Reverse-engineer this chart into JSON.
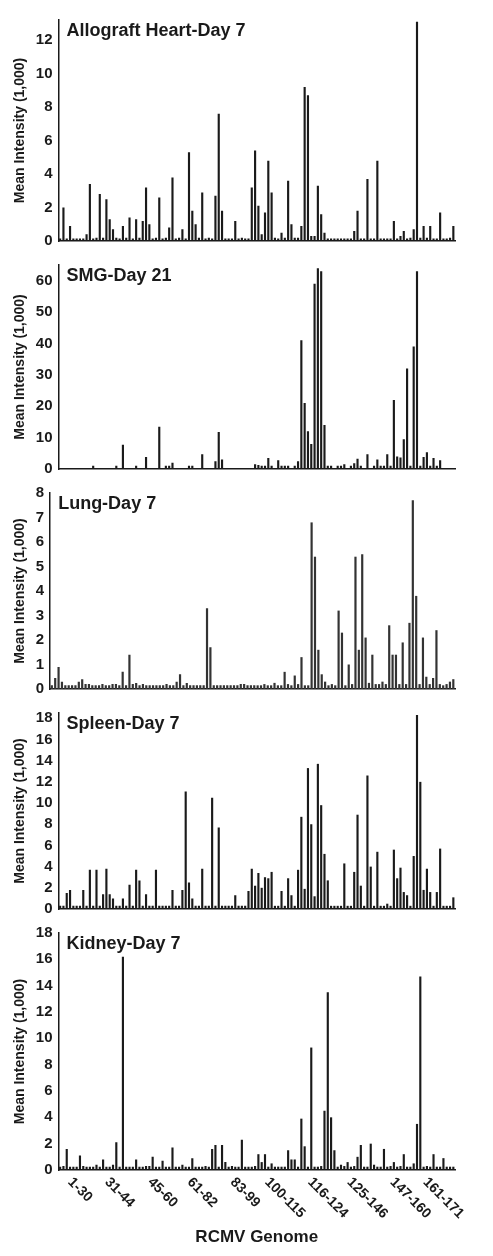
{
  "chart_data": [
    {
      "type": "bar",
      "title": "Allograft Heart-Day 7",
      "ylabel": "Mean Intensity (1,000)",
      "tick_labels": "y",
      "categories": [
        null,
        null,
        null,
        null,
        null,
        null,
        null,
        null,
        null,
        null,
        null,
        null,
        null,
        null,
        null,
        null,
        null,
        null,
        null,
        null,
        null,
        null,
        null,
        null,
        null,
        null,
        null,
        null,
        null,
        null,
        null,
        null,
        null,
        null,
        null,
        null,
        null,
        null,
        null,
        null,
        null,
        null,
        null,
        null,
        null,
        null,
        null,
        null,
        null,
        null,
        null,
        null,
        null,
        null,
        null,
        null,
        null,
        null,
        null,
        null,
        null,
        null,
        null,
        null,
        null,
        null,
        null,
        null,
        null,
        null,
        null,
        null,
        null,
        null,
        null,
        null,
        null,
        null,
        null,
        null,
        null,
        null,
        null,
        null,
        null,
        null,
        null,
        null,
        null,
        null,
        null,
        null,
        null,
        null,
        null,
        null,
        null,
        null,
        null,
        null,
        null,
        null,
        null,
        null,
        null,
        null,
        null,
        null,
        null,
        null,
        null,
        null,
        null,
        null,
        null,
        null,
        null,
        null,
        null,
        null
      ],
      "color": "#1a1a1a",
      "values": [
        0.15,
        2.0,
        0.15,
        0.9,
        0.15,
        0.15,
        0.15,
        0.15,
        0.4,
        3.4,
        0.15,
        0.2,
        2.8,
        0.2,
        2.5,
        1.3,
        0.7,
        0.2,
        0.15,
        0.9,
        0.2,
        1.4,
        0.15,
        1.3,
        0.2,
        1.2,
        3.2,
        1.0,
        0.15,
        0.2,
        2.6,
        0.15,
        0.2,
        0.8,
        3.8,
        0.15,
        0.2,
        0.7,
        0.15,
        5.3,
        1.8,
        1.0,
        0.2,
        2.9,
        0.15,
        0.2,
        0.15,
        2.7,
        7.6,
        1.8,
        0.15,
        0.15,
        0.15,
        1.2,
        0.15,
        0.2,
        0.15,
        0.15,
        3.2,
        5.4,
        2.1,
        0.4,
        1.7,
        4.8,
        2.9,
        0.2,
        0.15,
        0.5,
        0.2,
        3.6,
        1.0,
        0.2,
        0.2,
        0.9,
        9.2,
        8.7,
        0.3,
        0.3,
        3.3,
        1.6,
        0.5,
        0.15,
        0.15,
        0.15,
        0.15,
        0.15,
        0.15,
        0.15,
        0.15,
        0.6,
        1.8,
        0.15,
        0.15,
        3.7,
        0.15,
        0.15,
        4.8,
        0.15,
        0.15,
        0.15,
        0.15,
        1.2,
        0.15,
        0.3,
        0.6,
        0.15,
        0.2,
        0.7,
        13.1,
        0.2,
        0.9,
        0.2,
        0.9,
        0.15,
        0.15,
        1.7,
        0.15,
        0.15,
        0.2,
        0.9
      ],
      "ylim": [
        0,
        13.2
      ],
      "yticks": [
        0,
        2,
        4,
        6,
        8,
        10,
        12
      ]
    },
    {
      "type": "bar",
      "title": "SMG-Day 21",
      "ylabel": "Mean Intensity (1,000)",
      "tick_labels": "y",
      "categories": [
        null,
        null,
        null,
        null,
        null,
        null,
        null,
        null,
        null,
        null,
        null,
        null,
        null,
        null,
        null,
        null,
        null,
        null,
        null,
        null,
        null,
        null,
        null,
        null,
        null,
        null,
        null,
        null,
        null,
        null,
        null,
        null,
        null,
        null,
        null,
        null,
        null,
        null,
        null,
        null,
        null,
        null,
        null,
        null,
        null,
        null,
        null,
        null,
        null,
        null,
        null,
        null,
        null,
        null,
        null,
        null,
        null,
        null,
        null,
        null,
        null,
        null,
        null,
        null,
        null,
        null,
        null,
        null,
        null,
        null,
        null,
        null,
        null,
        null,
        null,
        null,
        null,
        null,
        null,
        null,
        null,
        null,
        null,
        null,
        null,
        null,
        null,
        null,
        null,
        null,
        null,
        null,
        null,
        null,
        null,
        null,
        null,
        null,
        null,
        null,
        null,
        null,
        null,
        null,
        null,
        null,
        null,
        null,
        null,
        null,
        null,
        null,
        null,
        null,
        null,
        null,
        null,
        null,
        null,
        null
      ],
      "color": "#1a1a1a",
      "values": [
        null,
        null,
        null,
        null,
        null,
        null,
        null,
        null,
        null,
        null,
        1.0,
        null,
        null,
        null,
        null,
        null,
        null,
        1.0,
        null,
        7.7,
        null,
        null,
        null,
        1.0,
        null,
        null,
        3.8,
        null,
        null,
        null,
        13.5,
        null,
        1.0,
        1.0,
        2.0,
        null,
        null,
        null,
        null,
        1.0,
        1.0,
        null,
        null,
        4.7,
        null,
        null,
        null,
        2.5,
        11.8,
        3.0,
        null,
        null,
        null,
        null,
        null,
        null,
        null,
        null,
        null,
        1.5,
        1.3,
        1.0,
        1.0,
        3.5,
        1.0,
        null,
        2.8,
        1.0,
        1.0,
        1.0,
        null,
        1.0,
        2.5,
        41,
        21,
        12,
        8,
        59,
        64,
        63,
        14,
        1.0,
        1.0,
        null,
        1.0,
        1.0,
        1.5,
        null,
        1.0,
        1.8,
        3.3,
        1.0,
        null,
        4.7,
        null,
        1.0,
        3.0,
        1.0,
        1.0,
        4.7,
        1.0,
        22,
        4.0,
        3.7,
        9.5,
        32,
        1.0,
        39,
        63,
        1.0,
        3.8,
        5.3,
        1.0,
        3.5,
        1.0,
        2.8,
        null,
        null,
        null,
        null
      ],
      "ylim": [
        0,
        65
      ],
      "yticks": [
        0,
        10,
        20,
        30,
        40,
        50,
        60
      ]
    },
    {
      "type": "bar",
      "title": "Lung-Day 7",
      "ylabel": "Mean Intensity (1,000)",
      "tick_labels": "y",
      "categories": [
        null,
        null,
        null,
        null,
        null,
        null,
        null,
        null,
        null,
        null,
        null,
        null,
        null,
        null,
        null,
        null,
        null,
        null,
        null,
        null,
        null,
        null,
        null,
        null,
        null,
        null,
        null,
        null,
        null,
        null,
        null,
        null,
        null,
        null,
        null,
        null,
        null,
        null,
        null,
        null,
        null,
        null,
        null,
        null,
        null,
        null,
        null,
        null,
        null,
        null,
        null,
        null,
        null,
        null,
        null,
        null,
        null,
        null,
        null,
        null,
        null,
        null,
        null,
        null,
        null,
        null,
        null,
        null,
        null,
        null,
        null,
        null,
        null,
        null,
        null,
        null,
        null,
        null,
        null,
        null,
        null,
        null,
        null,
        null,
        null,
        null,
        null,
        null,
        null,
        null,
        null,
        null,
        null,
        null,
        null,
        null,
        null,
        null,
        null,
        null,
        null,
        null,
        null,
        null,
        null,
        null,
        null,
        null,
        null,
        null,
        null,
        null,
        null,
        null,
        null,
        null,
        null,
        null,
        null,
        null
      ],
      "color": "#333333",
      "values": [
        0.15,
        0.45,
        0.9,
        0.3,
        0.15,
        0.15,
        0.15,
        0.15,
        0.3,
        0.4,
        0.2,
        0.2,
        0.15,
        0.15,
        0.15,
        0.2,
        0.15,
        0.15,
        0.2,
        0.2,
        0.15,
        0.7,
        0.15,
        1.4,
        0.2,
        0.25,
        0.15,
        0.2,
        0.15,
        0.15,
        0.15,
        0.15,
        0.15,
        0.15,
        0.2,
        0.15,
        0.15,
        0.3,
        0.6,
        0.15,
        0.25,
        0.15,
        0.15,
        0.15,
        0.15,
        0.15,
        3.3,
        1.7,
        0.15,
        0.15,
        0.15,
        0.15,
        0.15,
        0.15,
        0.15,
        0.15,
        0.2,
        0.2,
        0.15,
        0.15,
        0.15,
        0.15,
        0.15,
        0.2,
        0.15,
        0.15,
        0.25,
        0.15,
        0.15,
        0.7,
        0.2,
        0.15,
        0.55,
        0.2,
        1.3,
        0.15,
        0.15,
        6.8,
        5.4,
        1.6,
        0.6,
        0.3,
        0.15,
        0.2,
        0.15,
        3.2,
        2.3,
        0.15,
        1.0,
        0.2,
        5.4,
        1.6,
        5.5,
        2.1,
        0.25,
        1.4,
        0.2,
        0.2,
        0.3,
        0.2,
        2.6,
        1.4,
        1.4,
        0.2,
        1.9,
        0.2,
        2.7,
        7.7,
        3.8,
        0.2,
        2.1,
        0.5,
        0.2,
        0.45,
        2.4,
        0.2,
        0.15,
        0.2,
        0.3,
        0.4
      ],
      "ylim": [
        0,
        8
      ],
      "yticks": [
        0,
        1,
        2,
        3,
        4,
        5,
        6,
        7,
        8
      ]
    },
    {
      "type": "bar",
      "title": "Spleen-Day 7",
      "ylabel": "Mean Intensity (1,000)",
      "tick_labels": "y",
      "categories": [
        null,
        null,
        null,
        null,
        null,
        null,
        null,
        null,
        null,
        null,
        null,
        null,
        null,
        null,
        null,
        null,
        null,
        null,
        null,
        null,
        null,
        null,
        null,
        null,
        null,
        null,
        null,
        null,
        null,
        null,
        null,
        null,
        null,
        null,
        null,
        null,
        null,
        null,
        null,
        null,
        null,
        null,
        null,
        null,
        null,
        null,
        null,
        null,
        null,
        null,
        null,
        null,
        null,
        null,
        null,
        null,
        null,
        null,
        null,
        null,
        null,
        null,
        null,
        null,
        null,
        null,
        null,
        null,
        null,
        null,
        null,
        null,
        null,
        null,
        null,
        null,
        null,
        null,
        null,
        null,
        null,
        null,
        null,
        null,
        null,
        null,
        null,
        null,
        null,
        null,
        null,
        null,
        null,
        null,
        null,
        null,
        null,
        null,
        null,
        null,
        null,
        null,
        null,
        null,
        null,
        null,
        null,
        null,
        null,
        null,
        null,
        null,
        null,
        null,
        null,
        null,
        null,
        null,
        null,
        null
      ],
      "color": "#1a1a1a",
      "values": [
        0.3,
        0.3,
        1.5,
        1.8,
        0.3,
        0.3,
        0.3,
        1.8,
        0.3,
        3.7,
        0.3,
        3.7,
        0.3,
        1.4,
        3.8,
        1.4,
        1.0,
        0.3,
        0.3,
        1.0,
        0.3,
        2.3,
        0.3,
        3.7,
        2.7,
        0.3,
        1.4,
        0.3,
        0.3,
        3.7,
        0.3,
        0.3,
        0.3,
        0.3,
        1.8,
        0.3,
        0.3,
        1.8,
        11.1,
        2.5,
        1.0,
        0.3,
        0.3,
        3.8,
        0.3,
        0.3,
        10.5,
        0.3,
        7.7,
        0.3,
        0.3,
        0.3,
        0.3,
        1.3,
        0.3,
        0.3,
        0.3,
        1.7,
        3.8,
        2.2,
        3.4,
        2.0,
        3.0,
        2.9,
        3.5,
        0.3,
        0.3,
        1.7,
        0.3,
        2.9,
        1.3,
        0.3,
        3.7,
        8.7,
        1.9,
        13.3,
        8.0,
        1.2,
        13.7,
        9.8,
        5.2,
        2.7,
        0.3,
        0.3,
        0.3,
        0.3,
        4.3,
        0.3,
        0.3,
        3.5,
        8.9,
        2.2,
        0.3,
        12.6,
        4.0,
        0.3,
        5.4,
        0.3,
        0.3,
        0.5,
        0.3,
        5.6,
        2.9,
        3.9,
        1.6,
        1.3,
        0.3,
        5.0,
        18.3,
        12.0,
        1.8,
        3.8,
        1.6,
        0.3,
        1.6,
        5.7,
        0.3,
        0.3,
        0.3,
        1.1
      ],
      "ylim": [
        0,
        18.5
      ],
      "yticks": [
        0,
        2,
        4,
        6,
        8,
        10,
        12,
        14,
        16,
        18
      ]
    },
    {
      "type": "bar",
      "title": "Kidney-Day 7",
      "ylabel": "Mean Intensity (1,000)",
      "xlabel": "RCMV Genome",
      "categories": [
        null,
        null,
        null,
        null,
        null,
        null,
        "1-30",
        null,
        null,
        null,
        null,
        null,
        null,
        null,
        null,
        null,
        null,
        null,
        "31-44",
        null,
        null,
        null,
        null,
        null,
        null,
        null,
        null,
        null,
        null,
        null,
        null,
        "45-60",
        null,
        null,
        null,
        null,
        null,
        null,
        null,
        null,
        null,
        null,
        null,
        "61-82",
        null,
        null,
        null,
        null,
        null,
        null,
        null,
        null,
        null,
        null,
        null,
        null,
        "83-99",
        null,
        null,
        null,
        null,
        null,
        null,
        null,
        null,
        null,
        null,
        null,
        "100-115",
        null,
        null,
        null,
        null,
        null,
        null,
        null,
        null,
        null,
        null,
        null,
        null,
        "116-124",
        null,
        null,
        null,
        null,
        null,
        null,
        null,
        null,
        null,
        null,
        null,
        "125-146",
        null,
        null,
        null,
        null,
        null,
        null,
        null,
        null,
        null,
        null,
        null,
        null,
        "147-160",
        null,
        null,
        null,
        null,
        null,
        null,
        null,
        null,
        null,
        "161-171",
        null,
        null,
        null
      ],
      "color": "#1a1a1a",
      "values": [
        0.25,
        0.3,
        1.6,
        0.25,
        0.25,
        0.25,
        1.1,
        0.3,
        0.25,
        0.25,
        0.25,
        0.4,
        0.25,
        0.8,
        0.25,
        0.25,
        0.4,
        2.1,
        0.25,
        16.2,
        0.25,
        0.25,
        0.25,
        0.8,
        0.25,
        0.25,
        0.3,
        0.3,
        1.0,
        0.25,
        0.25,
        0.7,
        0.25,
        0.25,
        1.7,
        0.25,
        0.25,
        0.4,
        0.25,
        0.25,
        0.9,
        0.25,
        0.25,
        0.25,
        0.3,
        0.25,
        1.6,
        1.9,
        0.25,
        1.9,
        0.6,
        0.25,
        0.3,
        0.25,
        0.25,
        2.3,
        0.25,
        0.25,
        0.25,
        0.3,
        1.2,
        0.6,
        1.2,
        0.25,
        0.5,
        0.25,
        0.25,
        0.25,
        0.25,
        1.5,
        0.8,
        0.8,
        0.25,
        3.9,
        1.8,
        0.25,
        9.3,
        0.25,
        0.25,
        0.3,
        4.5,
        13.5,
        4.0,
        1.5,
        0.25,
        0.4,
        0.3,
        0.6,
        0.25,
        0.3,
        1.0,
        1.9,
        0.25,
        0.25,
        2.0,
        0.4,
        0.25,
        0.25,
        1.6,
        0.25,
        0.3,
        0.6,
        0.25,
        0.3,
        1.2,
        0.25,
        0.25,
        0.5,
        3.5,
        14.7,
        0.25,
        0.3,
        0.25,
        1.2,
        0.25,
        0.25,
        0.9,
        0.25,
        0.25,
        0.25
      ],
      "ylim": [
        0,
        18
      ],
      "yticks": [
        0,
        2,
        4,
        6,
        8,
        10,
        12,
        14,
        16,
        18
      ]
    }
  ]
}
